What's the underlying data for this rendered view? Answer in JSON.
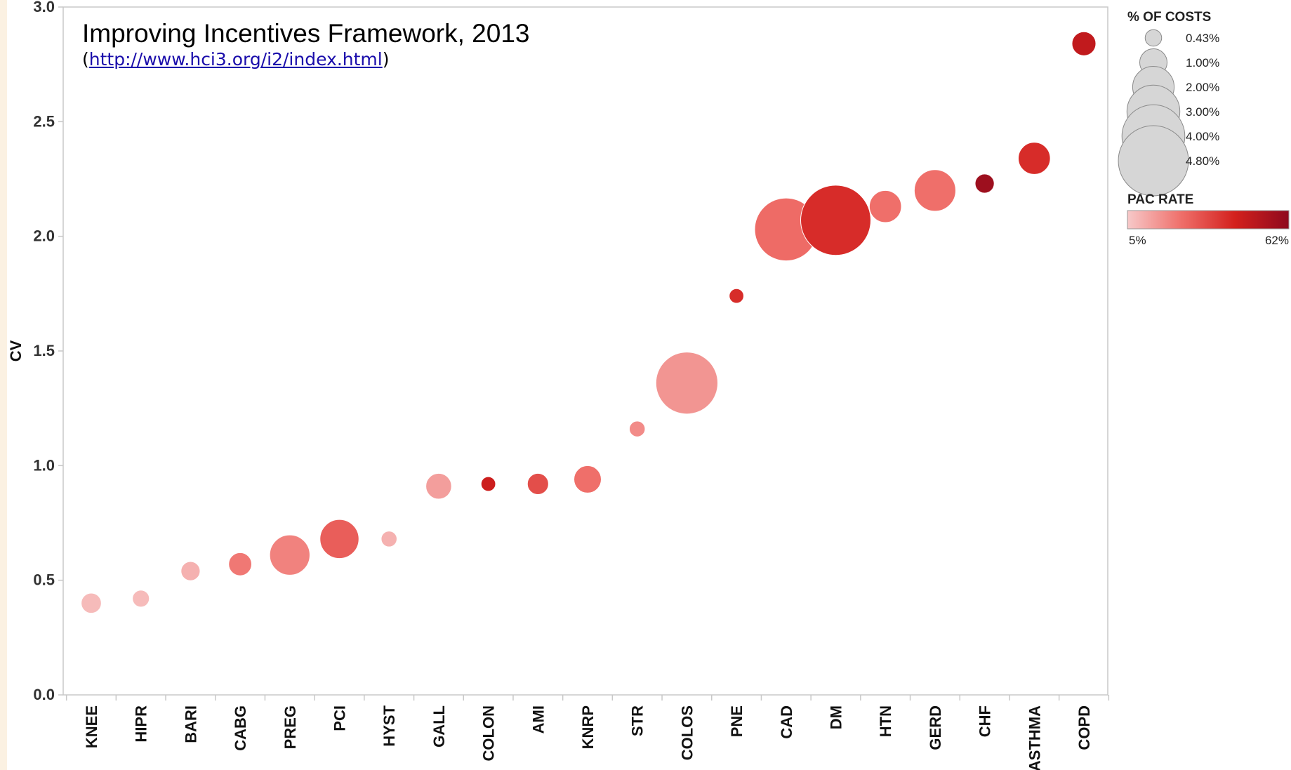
{
  "chart_data": {
    "type": "scatter",
    "title": "Improving Incentives Framework, 2013",
    "subtitle_prefix": "(",
    "subtitle_link": "http://www.hci3.org/i2/index.html",
    "subtitle_suffix": ")",
    "xlabel": "",
    "ylabel": "CV",
    "ylim": [
      0,
      3.0
    ],
    "yticks": [
      "0.0",
      "0.5",
      "1.0",
      "1.5",
      "2.0",
      "2.5",
      "3.0"
    ],
    "grid": false,
    "categories": [
      "KNEE",
      "HIPR",
      "BARI",
      "CABG",
      "PREG",
      "PCI",
      "HYST",
      "GALL",
      "COLON",
      "AMI",
      "KNRP",
      "STR",
      "COLOS",
      "PNE",
      "CAD",
      "DM",
      "HTN",
      "GERD",
      "CHF",
      "ASTHMA",
      "COPD"
    ],
    "series": [
      {
        "points": [
          {
            "category": "KNEE",
            "cv": 0.4,
            "pct_costs": 0.6,
            "pac_rate": 8
          },
          {
            "category": "HIPR",
            "cv": 0.42,
            "pct_costs": 0.45,
            "pac_rate": 8
          },
          {
            "category": "BARI",
            "cv": 0.54,
            "pct_costs": 0.55,
            "pac_rate": 10
          },
          {
            "category": "CABG",
            "cv": 0.57,
            "pct_costs": 0.75,
            "pac_rate": 22
          },
          {
            "category": "PREG",
            "cv": 0.61,
            "pct_costs": 1.9,
            "pac_rate": 20
          },
          {
            "category": "PCI",
            "cv": 0.68,
            "pct_costs": 1.8,
            "pac_rate": 28
          },
          {
            "category": "HYST",
            "cv": 0.68,
            "pct_costs": 0.4,
            "pac_rate": 10
          },
          {
            "category": "GALL",
            "cv": 0.91,
            "pct_costs": 0.9,
            "pac_rate": 14
          },
          {
            "category": "COLON",
            "cv": 0.92,
            "pct_costs": 0.35,
            "pac_rate": 45
          },
          {
            "category": "AMI",
            "cv": 0.92,
            "pct_costs": 0.65,
            "pac_rate": 32
          },
          {
            "category": "KNRP",
            "cv": 0.94,
            "pct_costs": 1.0,
            "pac_rate": 24
          },
          {
            "category": "STR",
            "cv": 1.16,
            "pct_costs": 0.4,
            "pac_rate": 18
          },
          {
            "category": "COLOS",
            "cv": 1.36,
            "pct_costs": 3.9,
            "pac_rate": 16
          },
          {
            "category": "PNE",
            "cv": 1.74,
            "pct_costs": 0.35,
            "pac_rate": 40
          },
          {
            "category": "CAD",
            "cv": 2.03,
            "pct_costs": 4.0,
            "pac_rate": 25
          },
          {
            "category": "DM",
            "cv": 2.07,
            "pct_costs": 4.8,
            "pac_rate": 40
          },
          {
            "category": "HTN",
            "cv": 2.13,
            "pct_costs": 1.3,
            "pac_rate": 24
          },
          {
            "category": "GERD",
            "cv": 2.2,
            "pct_costs": 2.0,
            "pac_rate": 24
          },
          {
            "category": "CHF",
            "cv": 2.23,
            "pct_costs": 0.55,
            "pac_rate": 58
          },
          {
            "category": "ASTHMA",
            "cv": 2.34,
            "pct_costs": 1.3,
            "pac_rate": 40
          },
          {
            "category": "COPD",
            "cv": 2.84,
            "pct_costs": 0.8,
            "pac_rate": 48
          }
        ]
      }
    ],
    "size_legend": {
      "title": "% OF COSTS",
      "items": [
        {
          "label": "0.43%",
          "value": 0.43
        },
        {
          "label": "1.00%",
          "value": 1.0
        },
        {
          "label": "2.00%",
          "value": 2.0
        },
        {
          "label": "3.00%",
          "value": 3.0
        },
        {
          "label": "4.00%",
          "value": 4.0
        },
        {
          "label": "4.80%",
          "value": 4.8
        }
      ]
    },
    "color_legend": {
      "title": "PAC RATE",
      "min_label": "5%",
      "max_label": "62%",
      "min": 5,
      "max": 62,
      "gradient": [
        "#f7c9c9",
        "#ef6f6a",
        "#d3201d",
        "#8e0a1e"
      ]
    },
    "legend_placement": "right",
    "colors": {
      "axis": "#c8c8c8",
      "legend_bubble": "#d6d6d6",
      "legend_bubble_stroke": "#8a8a8a"
    }
  }
}
